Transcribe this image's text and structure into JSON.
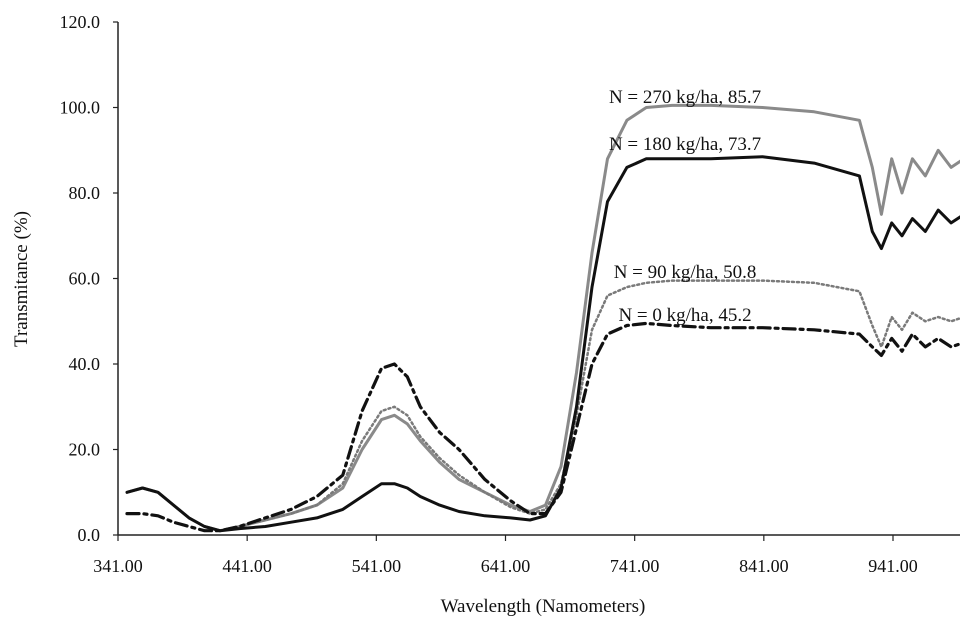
{
  "chart_data": {
    "type": "line",
    "title": "",
    "xlabel": "Wavelength (Namometers)",
    "ylabel": "Transmitance (%)",
    "xlim": [
      341,
      1000
    ],
    "ylim": [
      0,
      120
    ],
    "xticks": [
      "341.00",
      "441.00",
      "541.00",
      "641.00",
      "741.00",
      "841.00",
      "941.00"
    ],
    "xtick_values": [
      341,
      441,
      541,
      641,
      741,
      841,
      941
    ],
    "yticks": [
      "0.0",
      "20.0",
      "40.0",
      "60.0",
      "80.0",
      "100.0",
      "120.0"
    ],
    "ytick_values": [
      0,
      20,
      40,
      60,
      80,
      100,
      120
    ],
    "grid": false,
    "legend": "none",
    "series": [
      {
        "label": "N = 270 kg/ha, 85.7",
        "color": "#8a8a8a",
        "style": "solid",
        "x": [
          348,
          360,
          372,
          384,
          396,
          408,
          420,
          435,
          455,
          475,
          495,
          515,
          530,
          545,
          555,
          565,
          575,
          590,
          605,
          625,
          645,
          660,
          672,
          684,
          696,
          708,
          720,
          735,
          750,
          770,
          800,
          840,
          880,
          915,
          925,
          932,
          940,
          948,
          956,
          966,
          976,
          986,
          996,
          1000
        ],
        "y": [
          10,
          11,
          10,
          7,
          4,
          2,
          1,
          2,
          3.5,
          5,
          7,
          11,
          20,
          27,
          28,
          26,
          22,
          17,
          13,
          10,
          7,
          5.5,
          7,
          16,
          38,
          66,
          88,
          97,
          100,
          100.5,
          100.5,
          100,
          99,
          97,
          86,
          75,
          88,
          80,
          88,
          84,
          90,
          86,
          88,
          87
        ]
      },
      {
        "label": "N = 180 kg/ha, 73.7",
        "color": "#111111",
        "style": "solid",
        "x": [
          348,
          360,
          372,
          384,
          396,
          408,
          420,
          435,
          455,
          475,
          495,
          515,
          530,
          545,
          555,
          565,
          575,
          590,
          605,
          625,
          645,
          660,
          672,
          684,
          696,
          708,
          720,
          735,
          750,
          770,
          800,
          840,
          880,
          915,
          925,
          932,
          940,
          948,
          956,
          966,
          976,
          986,
          996,
          1000
        ],
        "y": [
          10,
          11,
          10,
          7,
          4,
          2,
          1,
          1.5,
          2,
          3,
          4,
          6,
          9,
          12,
          12,
          11,
          9,
          7,
          5.5,
          4.5,
          4,
          3.5,
          4.5,
          11,
          30,
          58,
          78,
          86,
          88,
          88,
          88,
          88.5,
          87,
          84,
          71,
          67,
          73,
          70,
          74,
          71,
          76,
          73,
          75,
          74
        ]
      },
      {
        "label": "N = 90 kg/ha, 50.8",
        "color": "#7a7a7a",
        "style": "dotted",
        "x": [
          348,
          360,
          372,
          384,
          396,
          408,
          420,
          435,
          455,
          475,
          495,
          515,
          530,
          545,
          555,
          565,
          575,
          590,
          605,
          625,
          645,
          660,
          672,
          684,
          696,
          708,
          720,
          735,
          750,
          770,
          800,
          840,
          880,
          915,
          925,
          932,
          940,
          948,
          956,
          966,
          976,
          986,
          996,
          1000
        ],
        "y": [
          10,
          11,
          10,
          7,
          4,
          2,
          1,
          2,
          3.5,
          5,
          7,
          12,
          22,
          29,
          30,
          28,
          23,
          18,
          14,
          10,
          6.5,
          5,
          6,
          12,
          28,
          48,
          56,
          58,
          59,
          59.5,
          59.5,
          59.5,
          59,
          57,
          49,
          44,
          51,
          48,
          52,
          50,
          51,
          50,
          51,
          50
        ]
      },
      {
        "label": "N = 0 kg/ha, 45.2",
        "color": "#111111",
        "style": "dashdot",
        "x": [
          348,
          360,
          372,
          384,
          396,
          408,
          420,
          435,
          455,
          475,
          495,
          515,
          530,
          545,
          555,
          565,
          575,
          590,
          605,
          625,
          645,
          660,
          672,
          684,
          696,
          708,
          720,
          735,
          750,
          770,
          800,
          840,
          880,
          915,
          925,
          932,
          940,
          948,
          956,
          966,
          976,
          986,
          996,
          1000
        ],
        "y": [
          5,
          5,
          4.5,
          3,
          2,
          1,
          1,
          2,
          4,
          6,
          9,
          14,
          29,
          39,
          40,
          37,
          30,
          24,
          20,
          13,
          8,
          5,
          5,
          10,
          25,
          40,
          47,
          49,
          49.5,
          49,
          48.5,
          48.5,
          48,
          47,
          44,
          42,
          46,
          43,
          47,
          44,
          46,
          44,
          45,
          44
        ]
      }
    ],
    "annotations": [
      {
        "text": "N = 270 kg/ha, 85.7",
        "x": 780,
        "y": 102.5
      },
      {
        "text": "N = 180 kg/ha, 73.7",
        "x": 780,
        "y": 91.5
      },
      {
        "text": "N = 90 kg/ha, 50.8",
        "x": 780,
        "y": 61.5
      },
      {
        "text": "N = 0 kg/ha, 45.2",
        "x": 780,
        "y": 51.5
      }
    ]
  }
}
